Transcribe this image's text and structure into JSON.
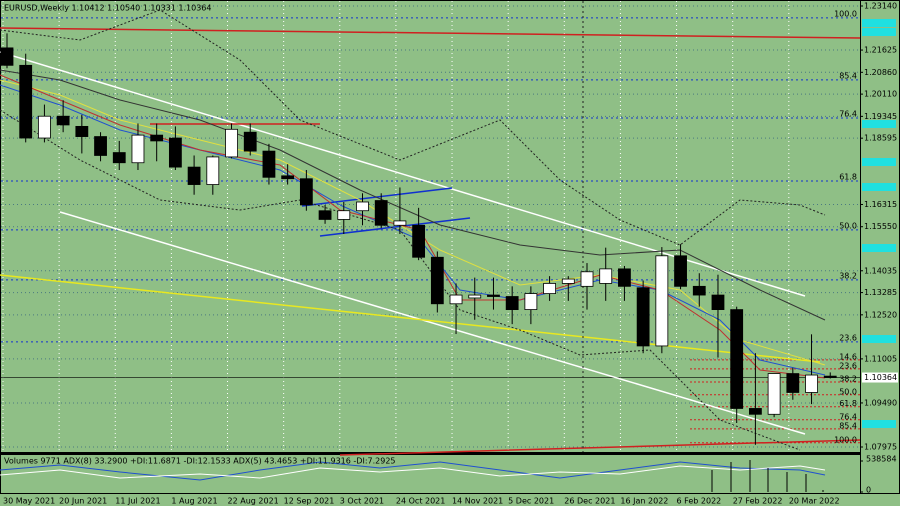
{
  "chart_data": {
    "type": "candlestick",
    "title": "EURUSD,Weekly  1.10412 1.10540 1.10331 1.10364",
    "x": [
      "30 May 2021",
      null,
      null,
      "20 Jun 2021",
      null,
      null,
      "11 Jul 2021",
      null,
      null,
      "1 Aug 2021",
      null,
      null,
      "22 Aug 2021",
      null,
      null,
      "12 Sep 2021",
      null,
      null,
      "3 Oct 2021",
      null,
      null,
      "24 Oct 2021",
      null,
      null,
      "14 Nov 2021",
      null,
      null,
      "5 Dec 2021",
      null,
      null,
      "26 Dec 2021",
      null,
      null,
      "16 Jan 2022",
      null,
      null,
      "6 Feb 2022",
      null,
      null,
      "27 Feb 2022",
      null,
      null,
      "20 Mar 2022",
      null,
      null
    ],
    "open": [
      1.217,
      1.211,
      1.186,
      1.1935,
      1.19,
      1.1865,
      1.181,
      1.1775,
      1.187,
      1.186,
      1.176,
      1.17,
      1.1795,
      1.188,
      1.1815,
      1.173,
      1.172,
      1.161,
      1.158,
      1.161,
      1.1645,
      1.156,
      1.156,
      1.145,
      1.129,
      1.131,
      1.132,
      1.1315,
      1.127,
      1.1325,
      1.136,
      1.135,
      1.136,
      1.141,
      1.1345,
      1.1145,
      1.1455,
      1.135,
      1.132,
      1.127,
      1.093,
      1.091,
      1.105,
      1.0985,
      1.10412
    ],
    "high": [
      1.222,
      1.215,
      1.1975,
      1.199,
      1.194,
      1.188,
      1.185,
      1.191,
      1.191,
      1.19,
      1.18,
      1.18,
      1.191,
      1.191,
      1.184,
      1.177,
      1.175,
      1.163,
      1.164,
      1.167,
      1.167,
      1.169,
      1.162,
      1.147,
      1.136,
      1.138,
      1.138,
      1.135,
      1.135,
      1.1385,
      1.1385,
      1.143,
      1.1483,
      1.142,
      1.137,
      1.1485,
      1.1495,
      1.1395,
      1.139,
      1.128,
      1.112,
      1.1035,
      1.107,
      1.1185,
      1.1054
    ],
    "low": [
      1.21,
      1.1845,
      1.1845,
      1.188,
      1.1807,
      1.178,
      1.175,
      1.175,
      1.178,
      1.175,
      1.1665,
      1.1665,
      1.179,
      1.18,
      1.17,
      1.17,
      1.161,
      1.1565,
      1.153,
      1.156,
      1.155,
      1.153,
      1.144,
      1.126,
      1.1186,
      1.1235,
      1.127,
      1.122,
      1.122,
      1.13,
      1.13,
      1.127,
      1.13,
      1.13,
      1.112,
      1.112,
      1.134,
      1.128,
      1.1105,
      1.088,
      1.0805,
      1.09,
      1.096,
      1.0945,
      1.10331
    ],
    "close": [
      1.211,
      1.186,
      1.1935,
      1.1905,
      1.1865,
      1.18,
      1.1775,
      1.187,
      1.185,
      1.176,
      1.17,
      1.1795,
      1.189,
      1.1815,
      1.1725,
      1.172,
      1.163,
      1.158,
      1.161,
      1.164,
      1.156,
      1.1575,
      1.145,
      1.129,
      1.132,
      1.132,
      1.1315,
      1.127,
      1.1325,
      1.136,
      1.1375,
      1.14,
      1.141,
      1.135,
      1.1145,
      1.1455,
      1.135,
      1.132,
      1.127,
      1.093,
      1.091,
      1.105,
      1.0985,
      1.1045,
      1.10364
    ],
    "up_color": "#ffffff",
    "down_color": "#000000",
    "ylim": [
      1.07975,
      1.2314
    ],
    "yticks": [
      {
        "value": 1.2314,
        "label": "1.23140"
      },
      {
        "value": 1.21625,
        "label": "1.21625"
      },
      {
        "value": 1.2086,
        "label": "1.20860"
      },
      {
        "value": 1.2011,
        "label": "1.20110"
      },
      {
        "value": 1.19345,
        "label": "1.19345"
      },
      {
        "value": 1.18595,
        "label": "1.18595"
      },
      {
        "value": 1.16315,
        "label": "1.16315"
      },
      {
        "value": 1.1555,
        "label": "1.15550"
      },
      {
        "value": 1.14035,
        "label": "1.14035"
      },
      {
        "value": 1.13285,
        "label": "1.13285"
      },
      {
        "value": 1.1252,
        "label": "1.12520"
      },
      {
        "value": 1.11005,
        "label": "1.11005"
      },
      {
        "value": 1.0949,
        "label": "1.09490"
      },
      {
        "value": 1.07975,
        "label": "1.07975"
      }
    ],
    "current_price": 1.10364,
    "fib_levels": [
      {
        "value": 1.2273,
        "label": "100.0"
      },
      {
        "value": 1.206,
        "label": "85.4"
      },
      {
        "value": 1.1929,
        "label": "76.4"
      },
      {
        "value": 1.1712,
        "label": "61.8"
      },
      {
        "value": 1.1544,
        "label": "50.0"
      },
      {
        "value": 1.1372,
        "label": "38.2"
      },
      {
        "value": 1.1159,
        "label": "23.6"
      }
    ],
    "fib_levels_lower": [
      {
        "value": 1.1097,
        "label": "14.6"
      },
      {
        "value": 1.1066,
        "label": "23.6"
      },
      {
        "value": 1.1021,
        "label": "38.2"
      },
      {
        "value": 1.0977,
        "label": "50.0"
      },
      {
        "value": 1.0936,
        "label": "61.8"
      },
      {
        "value": 1.0891,
        "label": "76.4"
      },
      {
        "value": 1.086,
        "label": "85.4"
      },
      {
        "value": 1.0812,
        "label": "100.0"
      }
    ],
    "indicator": {
      "label": "Volumes 9771  ADX(8) 33.2900 +DI:11.6871 -DI:12.1533  ADX(5) 43.4653 +DI:11.9316 -DI:7.2925",
      "ylim": [
        0,
        538584
      ],
      "yticks": [
        0,
        538584
      ]
    }
  }
}
